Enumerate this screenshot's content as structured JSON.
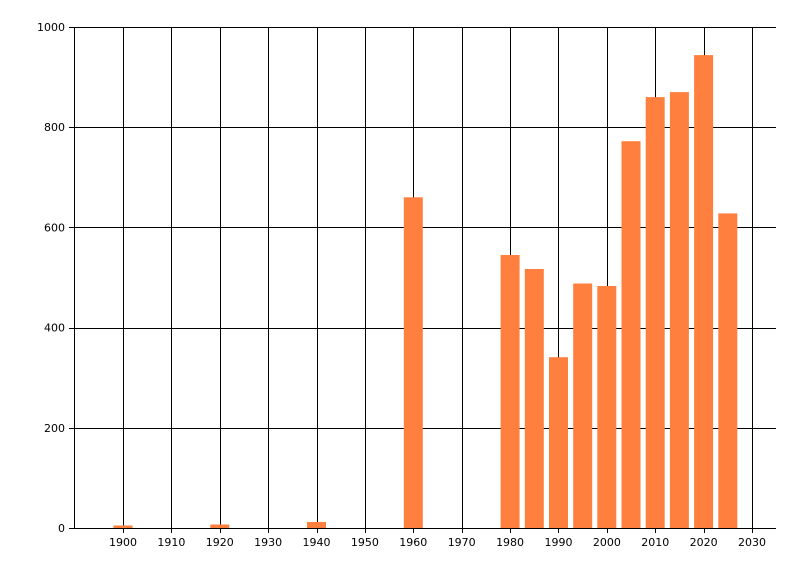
{
  "chart_data": {
    "type": "bar",
    "title": "",
    "xlabel": "",
    "ylabel": "",
    "xlim": [
      1890,
      2030
    ],
    "ylim": [
      0,
      1000
    ],
    "x_ticks": [
      1900,
      1910,
      1920,
      1930,
      1940,
      1950,
      1960,
      1970,
      1980,
      1990,
      2000,
      2010,
      2020,
      2030
    ],
    "y_ticks": [
      0,
      200,
      400,
      600,
      800,
      1000
    ],
    "grid": true,
    "bar_color": "#ff7f3f",
    "grid_color": "#000000",
    "bars": [
      {
        "x": 1900,
        "value": 5
      },
      {
        "x": 1920,
        "value": 7
      },
      {
        "x": 1940,
        "value": 12
      },
      {
        "x": 1960,
        "value": 660
      },
      {
        "x": 1980,
        "value": 545
      },
      {
        "x": 1985,
        "value": 517
      },
      {
        "x": 1990,
        "value": 341
      },
      {
        "x": 1995,
        "value": 488
      },
      {
        "x": 2000,
        "value": 483
      },
      {
        "x": 2005,
        "value": 772
      },
      {
        "x": 2010,
        "value": 860
      },
      {
        "x": 2015,
        "value": 870
      },
      {
        "x": 2020,
        "value": 944
      },
      {
        "x": 2025,
        "value": 628
      }
    ]
  }
}
